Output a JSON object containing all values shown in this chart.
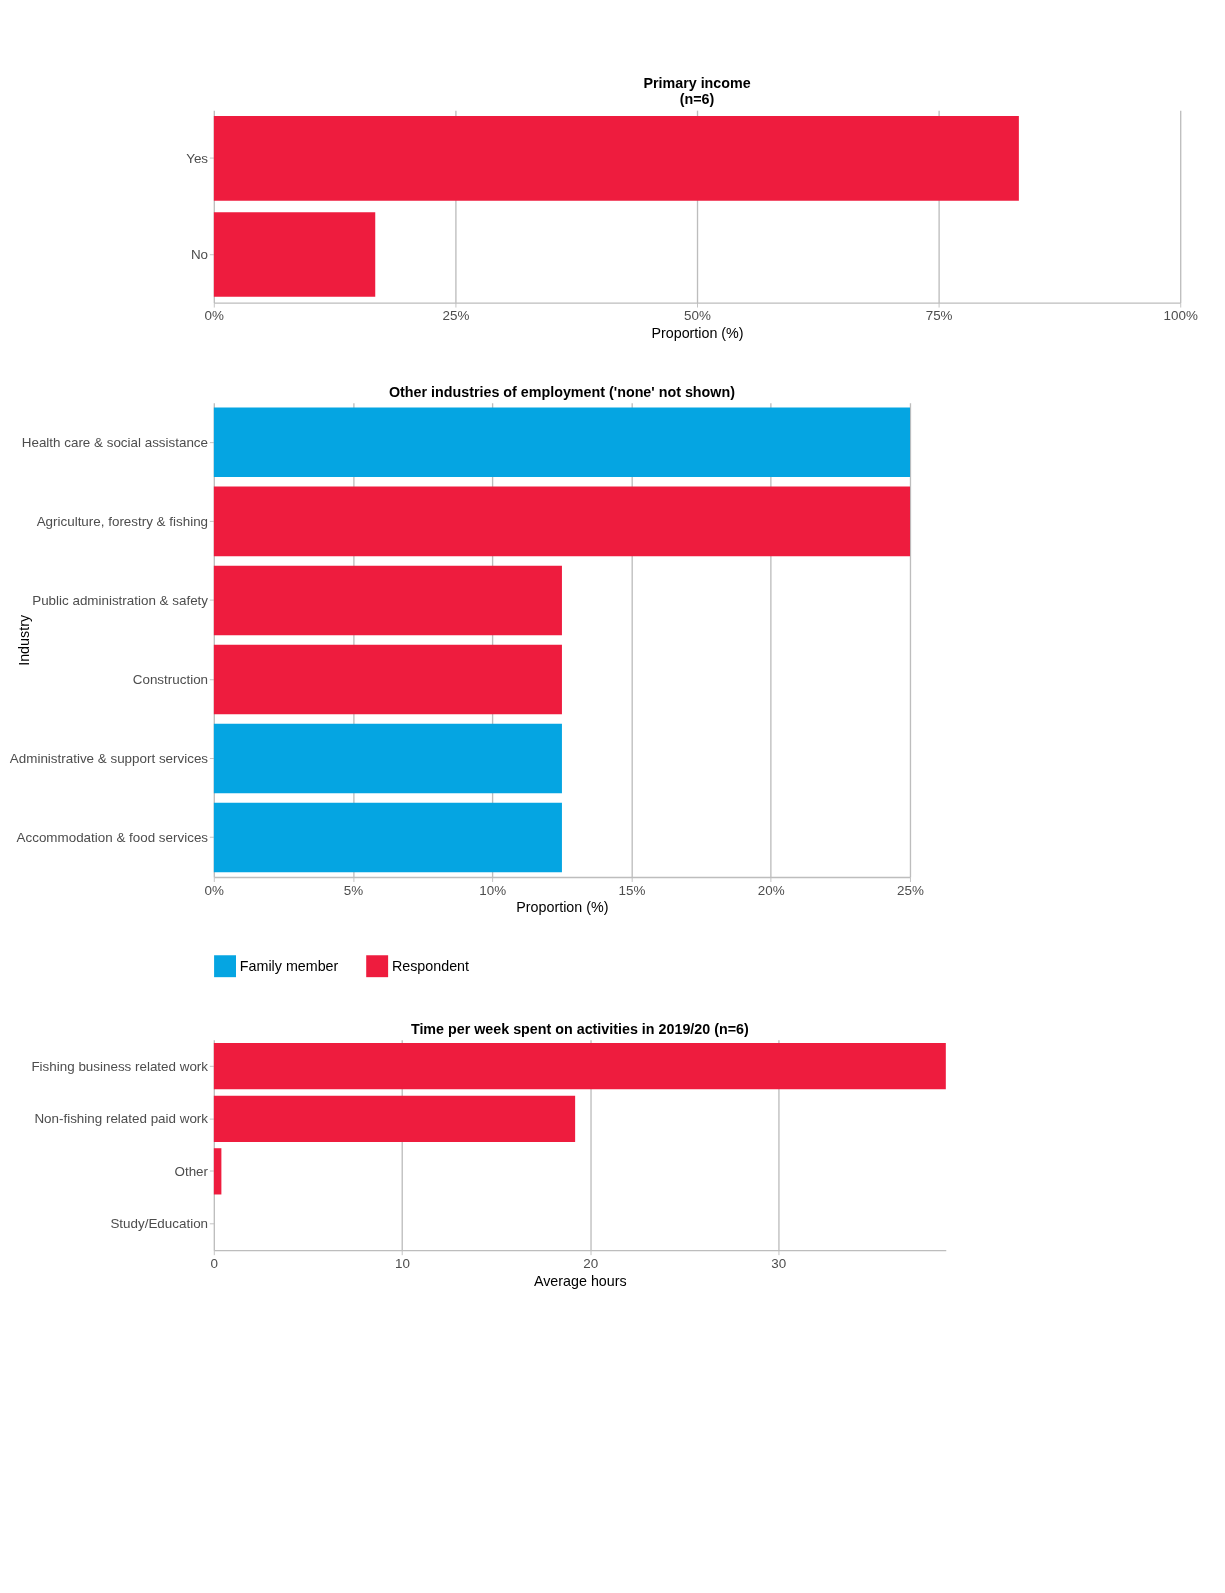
{
  "chart_data": [
    {
      "type": "bar",
      "orientation": "horizontal",
      "title": "Primary income\n(n=6)",
      "xlabel": "Proportion (%)",
      "categories": [
        "Yes",
        "No"
      ],
      "series": [
        {
          "color": "#ee1c3e",
          "values": [
            83.3,
            16.7
          ]
        }
      ],
      "xlim": [
        0,
        100
      ],
      "xticks": [
        {
          "value": 0,
          "label": "0%"
        },
        {
          "value": 25,
          "label": "25%"
        },
        {
          "value": 50,
          "label": "50%"
        },
        {
          "value": 75,
          "label": "75%"
        },
        {
          "value": 100,
          "label": "100%"
        }
      ],
      "grid": "x",
      "legend": false
    },
    {
      "type": "bar",
      "orientation": "horizontal",
      "title": "Other industries of employment ('none' not shown)",
      "xlabel": "Proportion (%)",
      "ylabel": "Industry",
      "categories": [
        "Health care & social assistance",
        "Agriculture, forestry & fishing",
        "Public administration & safety",
        "Construction",
        "Administrative & support services",
        "Accommodation & food services"
      ],
      "series": [
        {
          "name": "Family member",
          "color": "#05a5e2",
          "values": [
            25,
            null,
            null,
            null,
            12.5,
            12.5
          ]
        },
        {
          "name": "Respondent",
          "color": "#ee1c3e",
          "values": [
            null,
            25,
            12.5,
            12.5,
            null,
            null
          ]
        }
      ],
      "xlim": [
        0,
        25
      ],
      "xticks": [
        {
          "value": 0,
          "label": "0%"
        },
        {
          "value": 5,
          "label": "5%"
        },
        {
          "value": 10,
          "label": "10%"
        },
        {
          "value": 15,
          "label": "15%"
        },
        {
          "value": 20,
          "label": "20%"
        },
        {
          "value": 25,
          "label": "25%"
        }
      ],
      "grid": "x",
      "legend": "bottom"
    },
    {
      "type": "bar",
      "orientation": "horizontal",
      "title": "Time per week spent on activities in 2019/20 (n=6)",
      "xlabel": "Average hours",
      "categories": [
        "Fishing business related work",
        "Non-fishing related paid work",
        "Other",
        "Study/Education"
      ],
      "series": [
        {
          "color": "#ee1c3e",
          "values": [
            38.9,
            19.2,
            0.4,
            0
          ]
        }
      ],
      "xlim": [
        0,
        38.9
      ],
      "xticks": [
        0,
        10,
        20,
        30
      ],
      "grid": "x",
      "legend": false
    }
  ]
}
